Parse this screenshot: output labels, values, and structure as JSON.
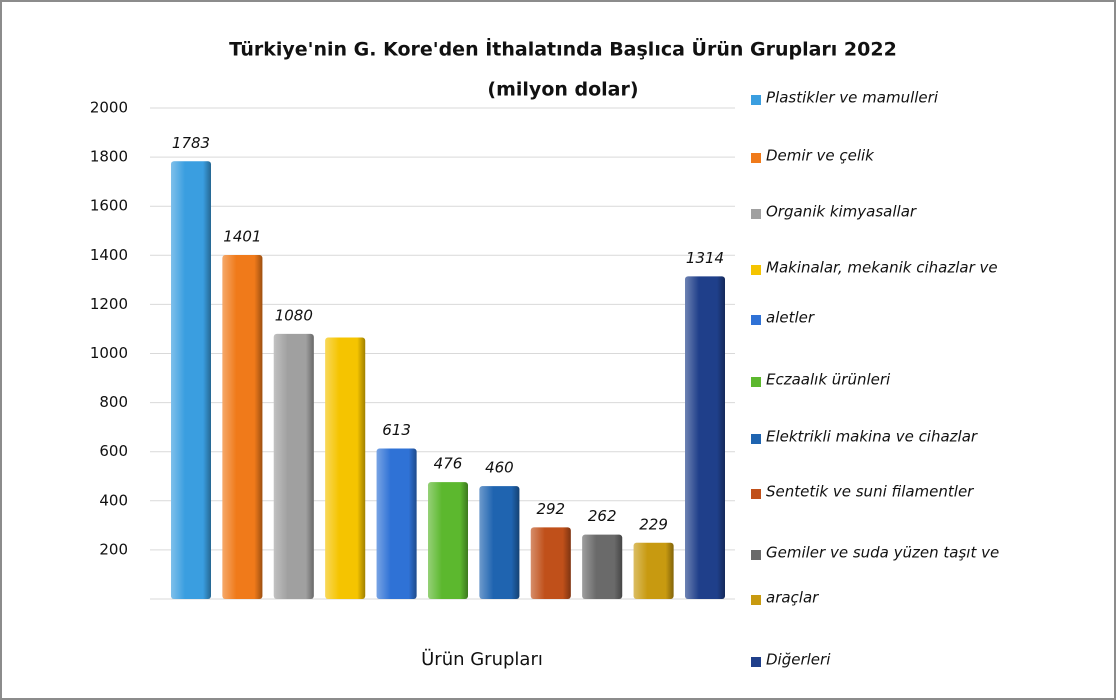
{
  "chart_data": {
    "type": "bar",
    "title": [
      "Türkiye'nin G. Kore'den İthalatında Başlıca Ürün Grupları 2022",
      "(milyon dolar)"
    ],
    "x_label": "Ürün Grupları",
    "categories": [
      "Plastikler ve mamulleri",
      "Demir ve çelik",
      "Organik kimyasallar",
      "Makinalar, mekanik cihazlar ve",
      "aletler",
      "Eczaalık ürünleri",
      "Elektrikli makina ve cihazlar",
      "Sentetik ve suni filamentler",
      "Gemiler ve suda yüzen taşıt ve",
      "araçlar",
      "Diğerleri"
    ],
    "values": [
      1783,
      1401,
      1080,
      1065,
      613,
      476,
      460,
      292,
      262,
      229,
      1314
    ],
    "value_labels": [
      "1783",
      "1401",
      "1080",
      null,
      "613",
      "476",
      "460",
      "292",
      "262",
      "229",
      "1314"
    ],
    "colors": [
      "#3a9ee0",
      "#f07a1a",
      "#a0a0a0",
      "#f5c400",
      "#2f72d6",
      "#5cb82e",
      "#1f64b0",
      "#c0501a",
      "#6a6a6a",
      "#c89a10",
      "#1f3f8a"
    ],
    "ylim": [
      0,
      2000
    ],
    "yticks": [
      200,
      400,
      600,
      800,
      1000,
      1200,
      1400,
      1600,
      1800,
      2000
    ],
    "grid": true,
    "legend": "right"
  }
}
